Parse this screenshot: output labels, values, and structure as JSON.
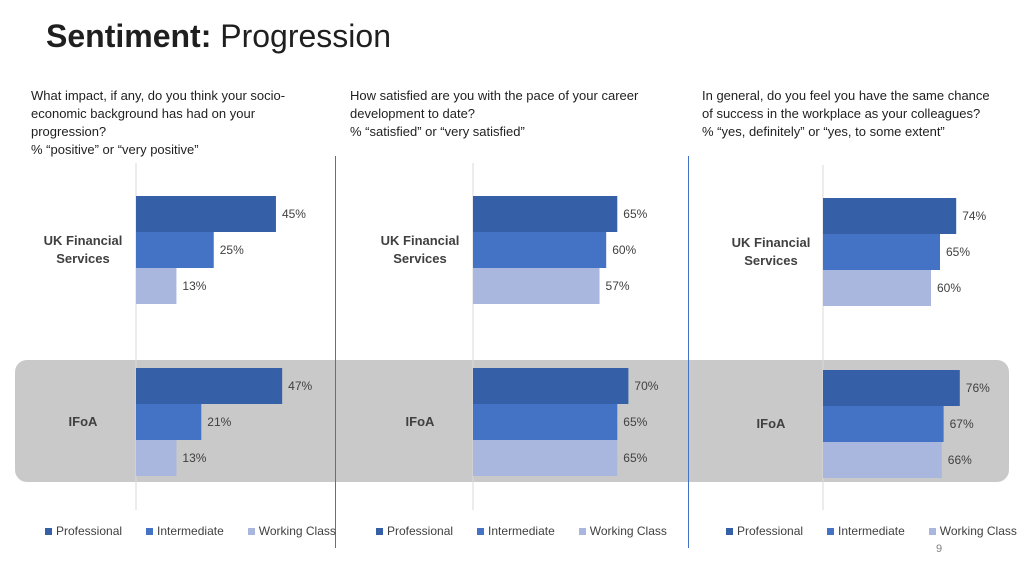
{
  "title": {
    "bold": "Sentiment:",
    "rest": " Progression"
  },
  "colors": {
    "professional": "#3560a8",
    "intermediate": "#4472c4",
    "working_class": "#a9b7df",
    "band": "#c9c9c9",
    "divider": "#4472c4"
  },
  "questions": [
    {
      "lines": [
        "What impact, if any, do you think your socio-",
        "economic background has had on your",
        "progression?",
        "% “positive” or “very positive”"
      ]
    },
    {
      "lines": [
        "How satisfied are you with the pace of your career",
        "development to date?",
        "% “satisfied” or “very satisfied”"
      ]
    },
    {
      "lines": [
        "In general, do you feel you have the same chance",
        "of success in the workplace as your colleagues?",
        "% “yes, definitely” or “yes, to some extent”"
      ]
    }
  ],
  "legend": [
    "Professional",
    "Intermediate",
    "Working Class"
  ],
  "page_number": "9",
  "chart_data": [
    {
      "type": "bar",
      "orientation": "horizontal",
      "title": "What impact, if any, do you think your socio-economic background has had on your progression? % “positive” or “very positive”",
      "categories": [
        "UK Financial Services",
        "IFoA"
      ],
      "series": [
        {
          "name": "Professional",
          "values": [
            45,
            47
          ]
        },
        {
          "name": "Intermediate",
          "values": [
            25,
            21
          ]
        },
        {
          "name": "Working Class",
          "values": [
            13,
            13
          ]
        }
      ],
      "value_labels": [
        [
          "45%",
          "47%"
        ],
        [
          "25%",
          "21%"
        ],
        [
          "13%",
          "13%"
        ]
      ],
      "xlim": [
        0,
        100
      ],
      "legend": "bottom"
    },
    {
      "type": "bar",
      "orientation": "horizontal",
      "title": "How satisfied are you with the pace of your career development to date? % “satisfied” or “very satisfied”",
      "categories": [
        "UK Financial Services",
        "IFoA"
      ],
      "series": [
        {
          "name": "Professional",
          "values": [
            65,
            70
          ]
        },
        {
          "name": "Intermediate",
          "values": [
            60,
            65
          ]
        },
        {
          "name": "Working Class",
          "values": [
            57,
            65
          ]
        }
      ],
      "value_labels": [
        [
          "65%",
          "70%"
        ],
        [
          "60%",
          "65%"
        ],
        [
          "57%",
          "65%"
        ]
      ],
      "xlim": [
        0,
        100
      ],
      "legend": "bottom"
    },
    {
      "type": "bar",
      "orientation": "horizontal",
      "title": "In general, do you feel you have the same chance of success in the workplace as your colleagues? % “yes, definitely” or “yes, to some extent”",
      "categories": [
        "UK Financial Services",
        "IFoA"
      ],
      "series": [
        {
          "name": "Professional",
          "values": [
            74,
            76
          ]
        },
        {
          "name": "Intermediate",
          "values": [
            65,
            67
          ]
        },
        {
          "name": "Working Class",
          "values": [
            60,
            66
          ]
        }
      ],
      "value_labels": [
        [
          "74%",
          "76%"
        ],
        [
          "65%",
          "67%"
        ],
        [
          "60%",
          "66%"
        ]
      ],
      "xlim": [
        0,
        100
      ],
      "legend": "bottom"
    }
  ]
}
